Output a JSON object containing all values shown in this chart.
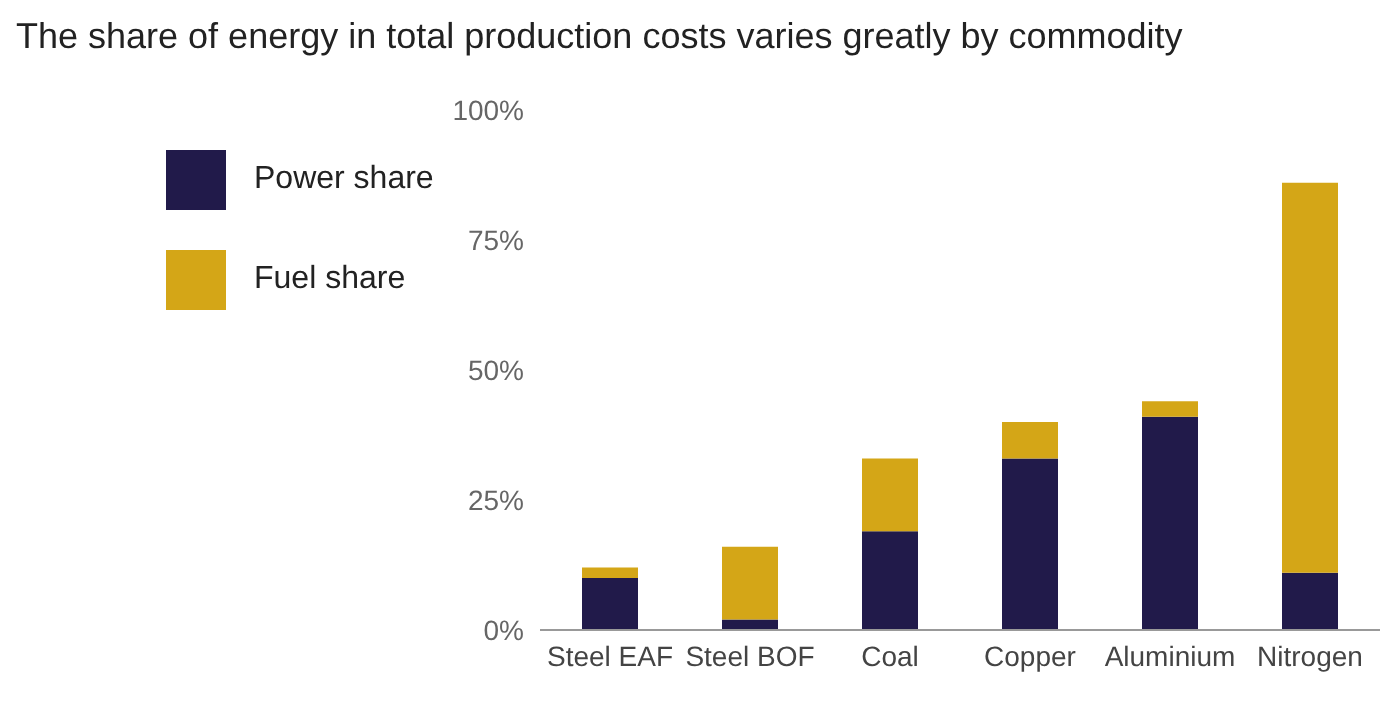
{
  "chart_data": {
    "type": "bar",
    "title": "The share of energy in total production costs varies greatly by commodity",
    "categories": [
      "Steel EAF",
      "Steel BOF",
      "Coal",
      "Copper",
      "Aluminium",
      "Nitrogen"
    ],
    "stacked": true,
    "series": [
      {
        "name": "Power share",
        "color": "#211a4a",
        "values": [
          10,
          2,
          19,
          33,
          41,
          11
        ]
      },
      {
        "name": "Fuel share",
        "color": "#d4a617",
        "values": [
          2,
          14,
          14,
          7,
          3,
          75
        ]
      }
    ],
    "ylim": [
      0,
      100
    ],
    "yticks": [
      {
        "value": 0,
        "label": "0%"
      },
      {
        "value": 25,
        "label": "25%"
      },
      {
        "value": 50,
        "label": "50%"
      },
      {
        "value": 75,
        "label": "75%"
      },
      {
        "value": 100,
        "label": "100%"
      }
    ],
    "grid": false,
    "legend": "top left"
  }
}
